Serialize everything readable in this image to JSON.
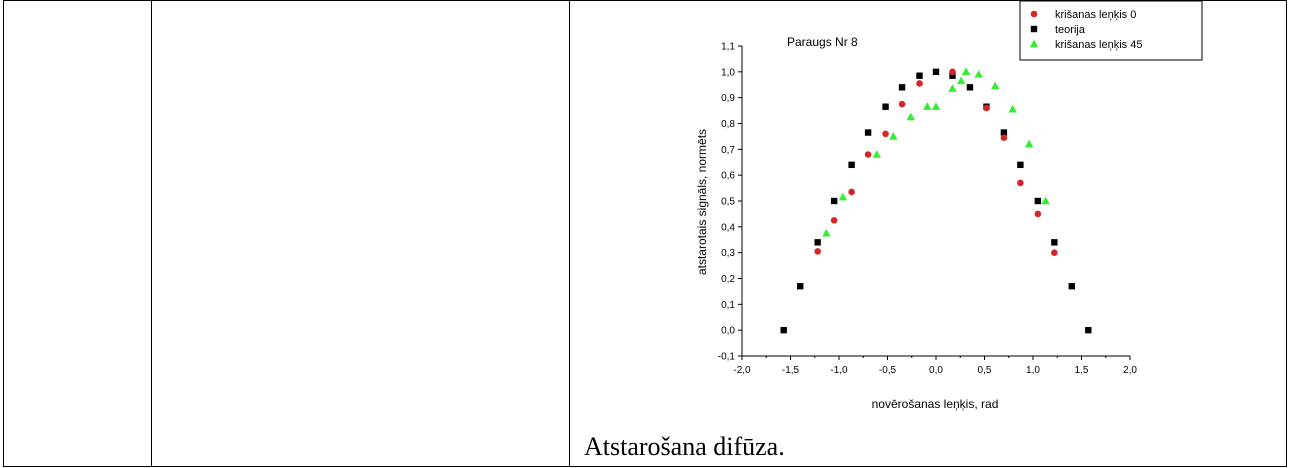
{
  "caption": "Atstarošana difūza.",
  "chart_data": {
    "type": "scatter",
    "title": "Paraugs Nr 8",
    "xlabel": "novērošanas leņķis, rad",
    "ylabel": "atstarotais signāls, normēts",
    "xlim": [
      -2.0,
      2.0
    ],
    "ylim": [
      -0.1,
      1.1
    ],
    "xticks": [
      -2.0,
      -1.5,
      -1.0,
      -0.5,
      0.0,
      0.5,
      1.0,
      1.5,
      2.0
    ],
    "xtick_labels": [
      "-2,0",
      "-1,5",
      "-1,0",
      "-0,5",
      "0,0",
      "0,5",
      "1,0",
      "1,5",
      "2,0"
    ],
    "yticks": [
      -0.1,
      0.0,
      0.1,
      0.2,
      0.3,
      0.4,
      0.5,
      0.6,
      0.7,
      0.8,
      0.9,
      1.0,
      1.1
    ],
    "ytick_labels": [
      "-0,1",
      "0,0",
      "0,1",
      "0,2",
      "0,3",
      "0,4",
      "0,5",
      "0,6",
      "0,7",
      "0,8",
      "0,9",
      "1,0",
      "1,1"
    ],
    "grid": false,
    "legend_position": "top-right",
    "series": [
      {
        "name": "krišanas leņķis 0",
        "marker": "circle",
        "color": "#d62728",
        "x": [
          -1.22,
          -1.05,
          -0.87,
          -0.7,
          -0.52,
          -0.35,
          -0.17,
          0.17,
          0.52,
          0.7,
          0.87,
          1.05,
          1.22
        ],
        "y": [
          0.305,
          0.425,
          0.535,
          0.68,
          0.76,
          0.875,
          0.955,
          1.0,
          0.86,
          0.745,
          0.57,
          0.45,
          0.3
        ]
      },
      {
        "name": "teorija",
        "marker": "square",
        "color": "#000000",
        "x": [
          -1.57,
          -1.4,
          -1.22,
          -1.05,
          -0.87,
          -0.7,
          -0.52,
          -0.35,
          -0.17,
          0.0,
          0.17,
          0.35,
          0.52,
          0.7,
          0.87,
          1.05,
          1.22,
          1.4,
          1.57
        ],
        "y": [
          0.0,
          0.17,
          0.34,
          0.5,
          0.64,
          0.765,
          0.865,
          0.94,
          0.985,
          1.0,
          0.985,
          0.94,
          0.865,
          0.765,
          0.64,
          0.5,
          0.34,
          0.17,
          0.0
        ]
      },
      {
        "name": "krišanas leņķis 45",
        "marker": "triangle",
        "color": "#33ee33",
        "x": [
          -1.13,
          -0.96,
          -0.61,
          -0.44,
          -0.26,
          -0.09,
          0.0,
          0.17,
          0.26,
          0.31,
          0.44,
          0.61,
          0.79,
          0.96,
          1.13
        ],
        "y": [
          0.375,
          0.515,
          0.68,
          0.75,
          0.825,
          0.865,
          0.865,
          0.935,
          0.965,
          1.0,
          0.99,
          0.945,
          0.855,
          0.72,
          0.5
        ]
      }
    ]
  }
}
